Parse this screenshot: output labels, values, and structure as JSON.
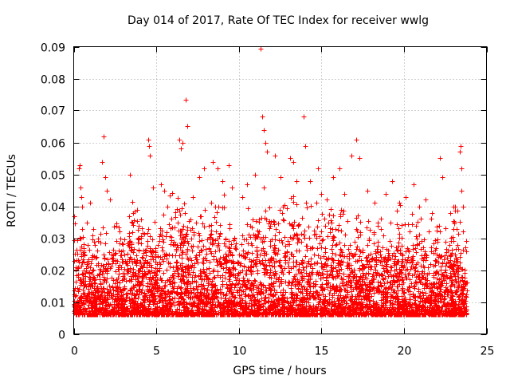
{
  "chart_data": {
    "type": "scatter",
    "title": "Day 014 of 2017, Rate Of TEC Index for receiver wwlg",
    "xlabel": "GPS time / hours",
    "ylabel": "ROTI / TECUs",
    "xlim": [
      0,
      25
    ],
    "ylim": [
      0,
      0.09
    ],
    "xticks": [
      0,
      5,
      10,
      15,
      20,
      25
    ],
    "xtick_labels": [
      "0",
      "5",
      "10",
      "15",
      "20",
      "25"
    ],
    "yticks": [
      0,
      0.01,
      0.02,
      0.03,
      0.04,
      0.05,
      0.06,
      0.07,
      0.08,
      0.09
    ],
    "ytick_labels": [
      "0",
      "0.01",
      "0.02",
      "0.03",
      "0.04",
      "0.05",
      "0.06",
      "0.07",
      "0.08",
      "0.09"
    ],
    "grid": true,
    "marker": "+",
    "color": "#ff0000",
    "series": [
      {
        "name": "ROTI",
        "points": [
          [
            0.0,
            0.037
          ],
          [
            0.3,
            0.052
          ],
          [
            0.35,
            0.053
          ],
          [
            0.4,
            0.046
          ],
          [
            0.45,
            0.043
          ],
          [
            0.5,
            0.04
          ],
          [
            0.8,
            0.035
          ],
          [
            1.0,
            0.041
          ],
          [
            1.2,
            0.033
          ],
          [
            1.7,
            0.054
          ],
          [
            1.8,
            0.062
          ],
          [
            1.9,
            0.049
          ],
          [
            2.0,
            0.045
          ],
          [
            2.2,
            0.042
          ],
          [
            2.6,
            0.034
          ],
          [
            3.4,
            0.05
          ],
          [
            3.6,
            0.038
          ],
          [
            4.1,
            0.036
          ],
          [
            4.5,
            0.061
          ],
          [
            4.55,
            0.059
          ],
          [
            4.6,
            0.056
          ],
          [
            4.8,
            0.046
          ],
          [
            5.3,
            0.047
          ],
          [
            5.5,
            0.045
          ],
          [
            6.4,
            0.061
          ],
          [
            6.5,
            0.058
          ],
          [
            6.6,
            0.06
          ],
          [
            6.8,
            0.0735
          ],
          [
            6.9,
            0.065
          ],
          [
            7.2,
            0.043
          ],
          [
            7.6,
            0.049
          ],
          [
            7.9,
            0.052
          ],
          [
            8.4,
            0.054
          ],
          [
            8.7,
            0.052
          ],
          [
            9.0,
            0.048
          ],
          [
            9.4,
            0.053
          ],
          [
            9.6,
            0.046
          ],
          [
            10.2,
            0.043
          ],
          [
            10.5,
            0.047
          ],
          [
            11.0,
            0.05
          ],
          [
            11.3,
            0.0895
          ],
          [
            11.4,
            0.068
          ],
          [
            11.5,
            0.064
          ],
          [
            11.6,
            0.06
          ],
          [
            11.7,
            0.057
          ],
          [
            12.2,
            0.056
          ],
          [
            12.5,
            0.049
          ],
          [
            13.1,
            0.055
          ],
          [
            13.3,
            0.054
          ],
          [
            13.5,
            0.048
          ],
          [
            13.9,
            0.068
          ],
          [
            14.0,
            0.059
          ],
          [
            14.3,
            0.048
          ],
          [
            14.8,
            0.052
          ],
          [
            15.0,
            0.044
          ],
          [
            15.3,
            0.042
          ],
          [
            15.7,
            0.049
          ],
          [
            16.1,
            0.052
          ],
          [
            16.4,
            0.044
          ],
          [
            16.8,
            0.056
          ],
          [
            17.1,
            0.061
          ],
          [
            17.3,
            0.055
          ],
          [
            17.8,
            0.045
          ],
          [
            18.2,
            0.041
          ],
          [
            18.9,
            0.044
          ],
          [
            19.3,
            0.048
          ],
          [
            19.7,
            0.041
          ],
          [
            20.1,
            0.043
          ],
          [
            20.6,
            0.047
          ],
          [
            20.9,
            0.04
          ],
          [
            21.3,
            0.042
          ],
          [
            21.7,
            0.038
          ],
          [
            22.2,
            0.055
          ],
          [
            22.3,
            0.049
          ],
          [
            22.8,
            0.038
          ],
          [
            23.1,
            0.04
          ],
          [
            23.4,
            0.057
          ],
          [
            23.45,
            0.059
          ],
          [
            23.5,
            0.052
          ],
          [
            23.5,
            0.045
          ],
          [
            23.6,
            0.04
          ]
        ],
        "dense_band": {
          "description": "dense cluster of measurements",
          "x_range": [
            0,
            23.8
          ],
          "typical_min": 0.002,
          "typical_peak_values_by_hour": [
            [
              0,
              0.03
            ],
            [
              1,
              0.025
            ],
            [
              2,
              0.028
            ],
            [
              3,
              0.032
            ],
            [
              4,
              0.035
            ],
            [
              5,
              0.03
            ],
            [
              6,
              0.04
            ],
            [
              7,
              0.035
            ],
            [
              8,
              0.033
            ],
            [
              9,
              0.04
            ],
            [
              10,
              0.03
            ],
            [
              11,
              0.034
            ],
            [
              12,
              0.04
            ],
            [
              13,
              0.038
            ],
            [
              14,
              0.04
            ],
            [
              15,
              0.033
            ],
            [
              16,
              0.035
            ],
            [
              17,
              0.03
            ],
            [
              18,
              0.032
            ],
            [
              19,
              0.03
            ],
            [
              20,
              0.033
            ],
            [
              21,
              0.032
            ],
            [
              22,
              0.028
            ],
            [
              23,
              0.035
            ],
            [
              23.8,
              0.025
            ]
          ]
        }
      }
    ]
  }
}
